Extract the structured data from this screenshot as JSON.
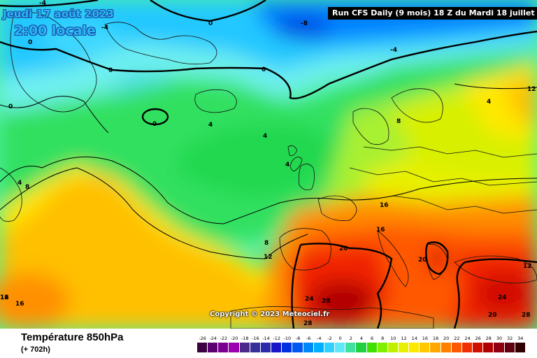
{
  "header": {
    "date": "Jeudi 17 août 2023",
    "time": "2:00 locale",
    "run": "Run CFS Daily (9 mois) 18 Z du Mardi 18 juillet 2023"
  },
  "copyright": "Copyright © 2023 Meteociel.fr",
  "footer": {
    "parameter": "Température 850hPa",
    "lead": "(+ 702h)"
  },
  "contour_labels": [
    "-4",
    "-4",
    "-8",
    "-4",
    "0",
    "0",
    "0",
    "0",
    "0",
    "0",
    "4",
    "4",
    "4",
    "4",
    "4",
    "8",
    "8",
    "8",
    "12",
    "12",
    "12",
    "12",
    "16",
    "16",
    "16",
    "16",
    "20",
    "20",
    "20",
    "24",
    "24",
    "28",
    "28",
    "28"
  ],
  "legend": {
    "values": [
      "-26",
      "-24",
      "-22",
      "-20",
      "-18",
      "-16",
      "-14",
      "-12",
      "-10",
      "-8",
      "-6",
      "-4",
      "-2",
      "0",
      "2",
      "4",
      "6",
      "8",
      "10",
      "12",
      "14",
      "16",
      "18",
      "20",
      "22",
      "24",
      "26",
      "28",
      "30",
      "32",
      "34"
    ],
    "colors": [
      "#3a0040",
      "#5c0070",
      "#7a0090",
      "#9a00b0",
      "#4b2a8a",
      "#38309a",
      "#2a2aaa",
      "#1818c8",
      "#0030e0",
      "#0058f0",
      "#0088f8",
      "#00b0ff",
      "#30d0ff",
      "#60e8f8",
      "#40e0a0",
      "#20d040",
      "#40e000",
      "#80f000",
      "#c0f000",
      "#e8f000",
      "#ffe800",
      "#ffc800",
      "#ffa800",
      "#ff8000",
      "#ff5800",
      "#f03000",
      "#d01000",
      "#b00000",
      "#900010",
      "#600010",
      "#300000"
    ]
  }
}
